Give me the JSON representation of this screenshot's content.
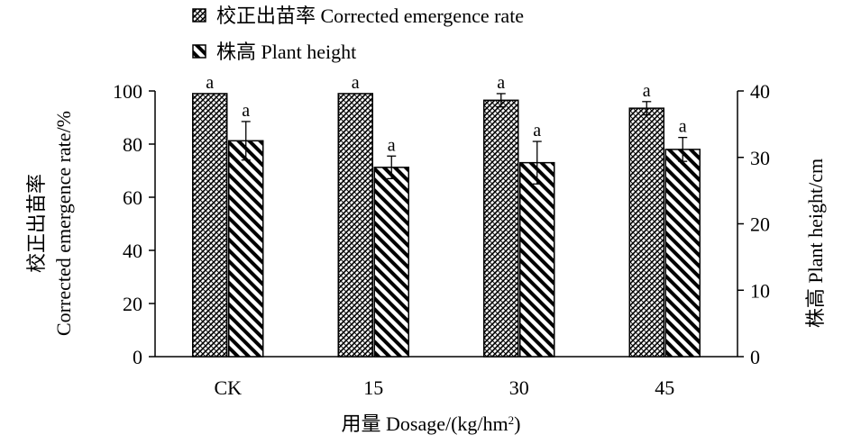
{
  "chart_data": {
    "type": "bar",
    "categories": [
      "CK",
      "15",
      "30",
      "45"
    ],
    "series": [
      {
        "name": "校正出苗率 Corrected emergence rate",
        "axis": "left",
        "pattern": "crosshatch",
        "values": [
          99,
          99,
          96.5,
          93.5
        ],
        "errors": [
          0,
          0,
          2.5,
          2.5
        ],
        "significance": [
          "a",
          "a",
          "a",
          "a"
        ]
      },
      {
        "name": "株高 Plant height",
        "axis": "right",
        "pattern": "diagonal",
        "values": [
          32.5,
          28.5,
          29.2,
          31.2
        ],
        "errors": [
          2.9,
          1.7,
          3.2,
          1.8
        ],
        "significance": [
          "a",
          "a",
          "a",
          "a"
        ]
      }
    ],
    "y_left": {
      "label_line1": "校正出苗率",
      "label_line2": "Corrected emergence rate/%",
      "ylim": [
        0,
        100
      ],
      "ticks": [
        "0",
        "20",
        "40",
        "60",
        "80",
        "100"
      ]
    },
    "y_right": {
      "label": "株高 Plant height/cm",
      "ylim": [
        0,
        40
      ],
      "ticks": [
        "0",
        "10",
        "20",
        "30",
        "40"
      ]
    },
    "xlabel": {
      "prefix": "用量 Dosage/(kg/hm",
      "sup": "2",
      "suffix": ")"
    },
    "legend_position": "top-center",
    "colors": {
      "ink": "#000000",
      "background": "#ffffff"
    }
  }
}
